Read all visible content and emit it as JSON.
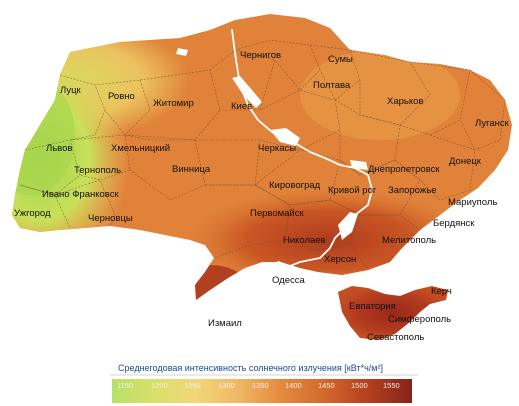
{
  "map": {
    "cities": [
      {
        "id": "chernigov",
        "name": "Чернигов"
      },
      {
        "id": "sumy",
        "name": "Сумы"
      },
      {
        "id": "lutsk",
        "name": "Луцк"
      },
      {
        "id": "rovno",
        "name": "Ровно"
      },
      {
        "id": "zhitomir",
        "name": "Житомир"
      },
      {
        "id": "kiev",
        "name": "Киев"
      },
      {
        "id": "poltava",
        "name": "Полтава"
      },
      {
        "id": "kharkov",
        "name": "Харьков"
      },
      {
        "id": "lugansk",
        "name": "Луганск"
      },
      {
        "id": "lvov",
        "name": "Львов"
      },
      {
        "id": "khmelnitsky",
        "name": "Хмельницкий"
      },
      {
        "id": "cherkasy",
        "name": "Черкасы"
      },
      {
        "id": "ternopol",
        "name": "Тернополь"
      },
      {
        "id": "vinnitsa",
        "name": "Винница"
      },
      {
        "id": "dnepropetrovsk",
        "name": "Днепропетровск"
      },
      {
        "id": "donetsk",
        "name": "Донецк"
      },
      {
        "id": "ivano-frankovsk",
        "name": "Ивано Франковск"
      },
      {
        "id": "kirovograd",
        "name": "Кировоград"
      },
      {
        "id": "krivoy-rog",
        "name": "Кривой рог"
      },
      {
        "id": "zaporozhye",
        "name": "Запорожье"
      },
      {
        "id": "mariupol",
        "name": "Мариуполь"
      },
      {
        "id": "uzhgorod",
        "name": "Ужгород"
      },
      {
        "id": "chernovtsy",
        "name": "Черновцы"
      },
      {
        "id": "pervomaysk",
        "name": "Первомайск"
      },
      {
        "id": "berdyansk",
        "name": "Бердянск"
      },
      {
        "id": "nikolaev",
        "name": "Николаев"
      },
      {
        "id": "melitopol",
        "name": "Мелитополь"
      },
      {
        "id": "kherson",
        "name": "Херсон"
      },
      {
        "id": "odessa",
        "name": "Одесса"
      },
      {
        "id": "kerch",
        "name": "Керч"
      },
      {
        "id": "evpatoria",
        "name": "Евпатория"
      },
      {
        "id": "simferopol",
        "name": "Симферополь"
      },
      {
        "id": "izmail",
        "name": "Измаил"
      },
      {
        "id": "sevastopol",
        "name": "Севастополь"
      }
    ]
  },
  "legend": {
    "title": "Среднегодовая интенсивность солнечного излучения [кВт*ч/м²]",
    "unit": "кВт*ч/м²",
    "ticks": [
      "1150",
      "1200",
      "1250",
      "1300",
      "1350",
      "1400",
      "1450",
      "1500"
    ],
    "end_label": "1550"
  },
  "colors": {
    "low": "#a9d94f",
    "mid_low": "#f3d06a",
    "mid": "#e58a35",
    "high": "#c95a24",
    "max": "#8a1f14",
    "water": "#ffffff"
  }
}
